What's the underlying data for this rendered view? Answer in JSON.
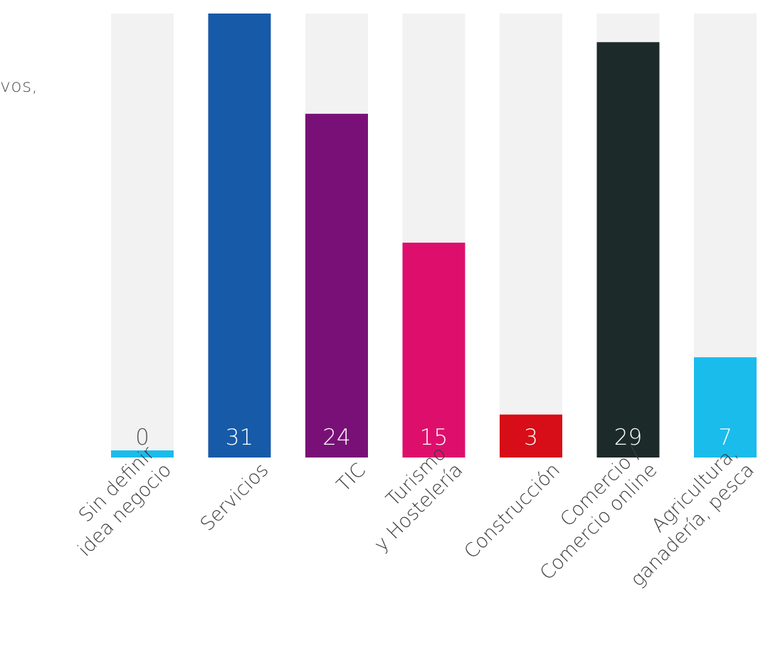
{
  "partial_text": "vos,",
  "chart_data": {
    "type": "bar",
    "categories": [
      [
        "Sin definir",
        "idea negocio"
      ],
      [
        "Servicios"
      ],
      [
        "TIC"
      ],
      [
        "Turismo",
        "y Hostelería"
      ],
      [
        "Construcción"
      ],
      [
        "Comercio /",
        "Comercio online"
      ],
      [
        "Agricultura,",
        "ganadería, pesca"
      ]
    ],
    "values": [
      0,
      31,
      24,
      15,
      3,
      29,
      7
    ],
    "labels": [
      "0",
      "31",
      "24",
      "15",
      "3",
      "29",
      "7"
    ],
    "colors": [
      "#1abcec",
      "#175aa8",
      "#791077",
      "#de0f6c",
      "#d70d17",
      "#1d2a2a",
      "#1abcec"
    ],
    "label_colors": [
      "#555555",
      "#ffffff",
      "#ffffff",
      "#ffffff",
      "#ffffff",
      "#ffffff",
      "#ffffff"
    ],
    "track_color": "#f2f2f2",
    "ylim": [
      0,
      31
    ],
    "grid": false,
    "legend": "none"
  }
}
